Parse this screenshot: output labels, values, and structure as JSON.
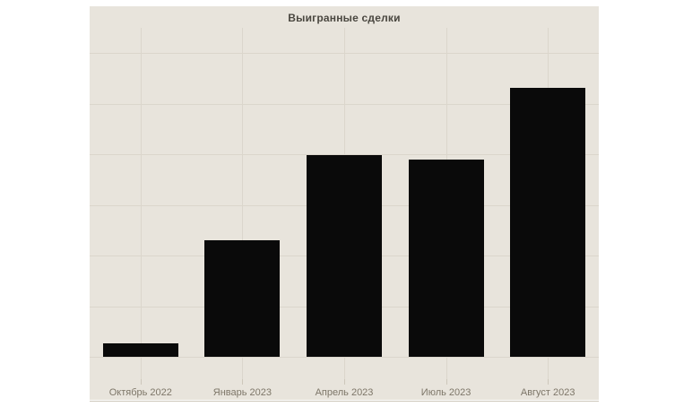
{
  "chart_data": {
    "type": "bar",
    "title": "Выигранные сделки",
    "categories": [
      "Октябрь 2022",
      "Январь 2023",
      "Апрель 2023",
      "Июль 2023",
      "Август 2023"
    ],
    "values": [
      0.27,
      2.3,
      3.98,
      3.89,
      5.31
    ],
    "xlabel": "",
    "ylabel": "",
    "y_axis_labeled": false,
    "ylim": [
      -0.44,
      6.5
    ],
    "y_gridlines": [
      0,
      1,
      2,
      3,
      4,
      5,
      6
    ],
    "legend": "none",
    "grid": "on",
    "colors": {
      "bar": "#0a0a0a",
      "plot_background": "#e8e4dc",
      "page_background": "#ffffff",
      "gridline": "#dbd6cc",
      "axis_line": "#cdc7bb",
      "title_text": "#4a4740",
      "axis_label_text": "#7d7668"
    }
  }
}
